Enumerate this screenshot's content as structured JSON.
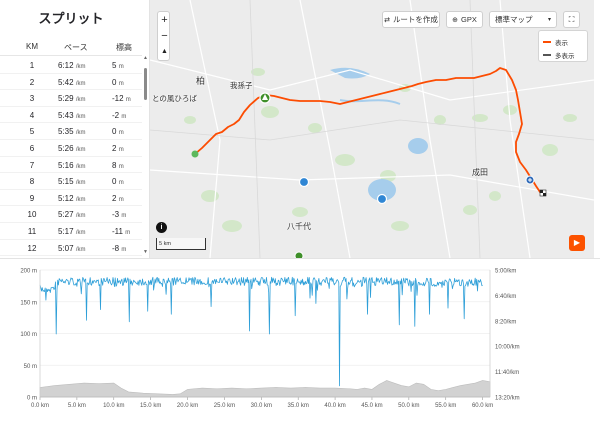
{
  "splits": {
    "title": "スプリット",
    "columns": {
      "km": "KM",
      "pace": "ペース",
      "elev": "標高"
    },
    "pace_unit": "/km",
    "elev_unit": "m",
    "rows": [
      {
        "km": "1",
        "pace": "6:12",
        "elev": "5"
      },
      {
        "km": "2",
        "pace": "5:42",
        "elev": "0"
      },
      {
        "km": "3",
        "pace": "5:29",
        "elev": "-12"
      },
      {
        "km": "4",
        "pace": "5:43",
        "elev": "-2"
      },
      {
        "km": "5",
        "pace": "5:35",
        "elev": "0"
      },
      {
        "km": "6",
        "pace": "5:26",
        "elev": "2"
      },
      {
        "km": "7",
        "pace": "5:16",
        "elev": "8"
      },
      {
        "km": "8",
        "pace": "5:15",
        "elev": "0"
      },
      {
        "km": "9",
        "pace": "5:12",
        "elev": "2"
      },
      {
        "km": "10",
        "pace": "5:27",
        "elev": "-3"
      },
      {
        "km": "11",
        "pace": "5:17",
        "elev": "-11"
      },
      {
        "km": "12",
        "pace": "5:07",
        "elev": "-8"
      }
    ]
  },
  "map": {
    "buttons": {
      "create_route": "ルートを作成",
      "gpx": "GPX",
      "map_style": "標準マップ",
      "zoom_in": "+",
      "zoom_out": "−",
      "compass": "▲",
      "info": "i",
      "play": "▶"
    },
    "legend": {
      "shown": "表示",
      "other": "多表示"
    },
    "labels": {
      "kashiwa": "柏",
      "abiko": "我孫子",
      "park": "との風ひろば",
      "narita": "成田",
      "yachiyo": "八千代"
    },
    "scale_label": "5 km",
    "colors": {
      "route": "#fc4c02",
      "legend_other": "#555555"
    }
  },
  "chart_data": {
    "type": "area",
    "x_ticks": [
      "0.0 km",
      "5.0 km",
      "10.0 km",
      "15.0 km",
      "20.0 km",
      "25.0 km",
      "30.0 km",
      "35.0 km",
      "40.0 km",
      "45.0 km",
      "50.0 km",
      "55.0 km",
      "60.0 km"
    ],
    "xlim": [
      0,
      61
    ],
    "elevation": {
      "ticks": [
        "200 m",
        "150 m",
        "100 m",
        "50 m",
        "0 m"
      ],
      "ylim": [
        0,
        200
      ],
      "x": [
        0,
        2,
        4,
        6,
        8,
        10,
        11,
        12,
        14,
        16,
        18,
        19,
        20,
        22,
        24,
        26,
        28,
        30,
        32,
        34,
        36,
        38,
        40,
        42,
        43,
        44,
        45,
        46,
        47,
        48,
        49,
        50,
        51,
        52,
        53,
        54,
        55,
        56,
        57,
        58,
        59,
        60,
        61
      ],
      "values": [
        15,
        18,
        20,
        22,
        21,
        22,
        14,
        8,
        6,
        5,
        4,
        5,
        12,
        14,
        13,
        14,
        13,
        14,
        15,
        14,
        15,
        14,
        14,
        13,
        12,
        14,
        12,
        20,
        26,
        22,
        18,
        16,
        22,
        20,
        12,
        10,
        12,
        15,
        18,
        20,
        22,
        26,
        24
      ],
      "color": "#d2d2d2"
    },
    "pace": {
      "ticks": [
        "5:00/km",
        "6:40/km",
        "8:20/km",
        "10:00/km",
        "11:40/km",
        "13:20/km"
      ],
      "ylim": [
        5,
        13.33
      ],
      "color": "#2e9fd8"
    }
  }
}
